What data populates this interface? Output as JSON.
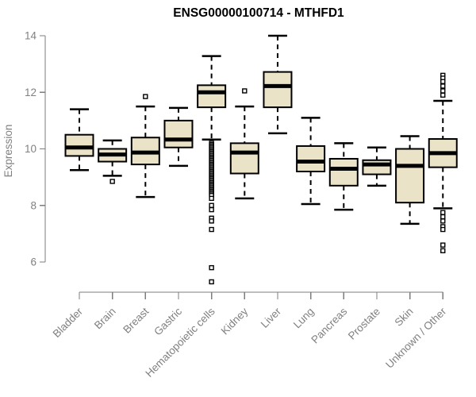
{
  "chart_data": {
    "type": "boxplot",
    "title": "ENSG00000100714 - MTHFD1",
    "xlabel": "",
    "ylabel": "Expression",
    "ylim": [
      6,
      14
    ],
    "yticks": [
      6,
      8,
      10,
      12,
      14
    ],
    "grid": false,
    "legend": null,
    "categories": [
      "Bladder",
      "Brain",
      "Breast",
      "Gastric",
      "Hematopoietic cells",
      "Kidney",
      "Liver",
      "Lung",
      "Pancreas",
      "Prostate",
      "Skin",
      "Unknown / Other"
    ],
    "series": [
      {
        "label": "Bladder",
        "whisker_low": 9.25,
        "q1": 9.75,
        "median": 10.05,
        "q3": 10.5,
        "whisker_high": 11.4,
        "outliers": []
      },
      {
        "label": "Brain",
        "whisker_low": 9.05,
        "q1": 9.55,
        "median": 9.8,
        "q3": 10.0,
        "whisker_high": 10.3,
        "outliers": [
          8.85
        ]
      },
      {
        "label": "Breast",
        "whisker_low": 8.3,
        "q1": 9.45,
        "median": 9.87,
        "q3": 10.4,
        "whisker_high": 11.5,
        "outliers": [
          11.85
        ]
      },
      {
        "label": "Gastric",
        "whisker_low": 9.4,
        "q1": 10.05,
        "median": 10.33,
        "q3": 11.0,
        "whisker_high": 11.45,
        "outliers": []
      },
      {
        "label": "Hematopoietic cells",
        "whisker_low": 10.33,
        "q1": 11.47,
        "median": 12.0,
        "q3": 12.25,
        "whisker_high": 13.28,
        "outliers": [
          10.2,
          10.15,
          10.1,
          10.05,
          10.0,
          9.95,
          9.9,
          9.85,
          9.8,
          9.75,
          9.7,
          9.65,
          9.6,
          9.55,
          9.5,
          9.45,
          9.4,
          9.35,
          9.3,
          9.25,
          9.2,
          9.15,
          9.1,
          9.05,
          9.0,
          8.95,
          8.9,
          8.85,
          8.8,
          8.75,
          8.7,
          8.65,
          8.6,
          8.55,
          8.5,
          8.45,
          8.4,
          8.35,
          8.25,
          8.0,
          7.85,
          7.55,
          7.45,
          7.15,
          5.8,
          5.3
        ]
      },
      {
        "label": "Kidney",
        "whisker_low": 8.25,
        "q1": 9.13,
        "median": 9.87,
        "q3": 10.2,
        "whisker_high": 11.5,
        "outliers": [
          12.05
        ]
      },
      {
        "label": "Liver",
        "whisker_low": 10.55,
        "q1": 11.47,
        "median": 12.22,
        "q3": 12.72,
        "whisker_high": 14.0,
        "outliers": []
      },
      {
        "label": "Lung",
        "whisker_low": 8.05,
        "q1": 9.2,
        "median": 9.55,
        "q3": 10.1,
        "whisker_high": 11.1,
        "outliers": []
      },
      {
        "label": "Pancreas",
        "whisker_low": 7.85,
        "q1": 8.7,
        "median": 9.3,
        "q3": 9.65,
        "whisker_high": 10.2,
        "outliers": []
      },
      {
        "label": "Prostate",
        "whisker_low": 8.7,
        "q1": 9.1,
        "median": 9.45,
        "q3": 9.6,
        "whisker_high": 10.05,
        "outliers": []
      },
      {
        "label": "Skin",
        "whisker_low": 7.35,
        "q1": 8.1,
        "median": 9.4,
        "q3": 10.0,
        "whisker_high": 10.45,
        "outliers": []
      },
      {
        "label": "Unknown / Other",
        "whisker_low": 7.9,
        "q1": 9.35,
        "median": 9.85,
        "q3": 10.35,
        "whisker_high": 11.7,
        "outliers": [
          12.6,
          12.5,
          12.38,
          12.22,
          12.05,
          11.9,
          7.75,
          7.6,
          7.45,
          7.25,
          7.15,
          6.6,
          6.4
        ]
      }
    ]
  },
  "colors": {
    "box_fill": "#eae3c8",
    "box_stroke": "#000000",
    "median": "#000000",
    "axis": "#7d7d7d",
    "text_gray": "#808080",
    "title": "#000000",
    "background": "#ffffff"
  }
}
